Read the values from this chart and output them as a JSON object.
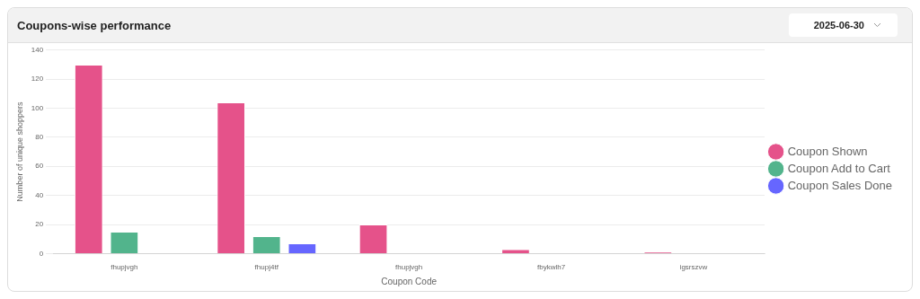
{
  "chart_data": {
    "type": "bar",
    "title": "Coupons-wise performance",
    "annotations": [
      "2025-06-30"
    ],
    "xlabel": "Coupon Code",
    "ylabel": "Number of unique shoppers",
    "categories": [
      "fhupjvgh",
      "fhupj4tf",
      "fhupjvgh",
      "fbykwlh7",
      "igsrszvw"
    ],
    "series": [
      {
        "name": "Coupon Shown",
        "color": "#e5528a",
        "values": [
          130,
          104,
          20,
          3,
          1
        ]
      },
      {
        "name": "Coupon Add to Cart",
        "color": "#52b48c",
        "values": [
          15,
          12,
          0,
          0,
          0
        ]
      },
      {
        "name": "Coupon Sales Done",
        "color": "#6666ff",
        "values": [
          0,
          7,
          0,
          0,
          0
        ]
      }
    ],
    "ylim": [
      0,
      140
    ],
    "yticks": [
      0,
      20,
      40,
      60,
      80,
      100,
      120,
      140
    ],
    "grid": "y",
    "legend": "right"
  }
}
